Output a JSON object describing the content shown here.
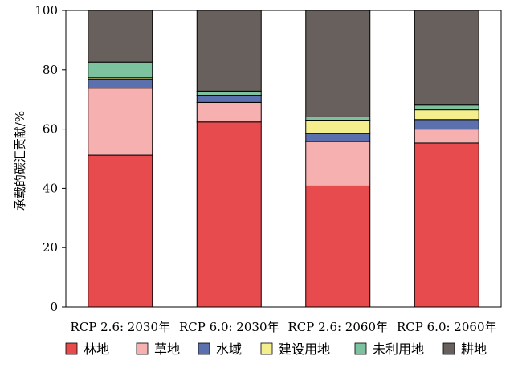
{
  "chart_data": {
    "type": "bar",
    "stacked": true,
    "categories": [
      "RCP 2.6: 2030年",
      "RCP 6.0: 2030年",
      "RCP 2.6: 2060年",
      "RCP 6.0: 2060年"
    ],
    "series": [
      {
        "name": "林地",
        "color": "#e84b4e",
        "values": [
          51.2,
          62.4,
          40.8,
          55.3
        ]
      },
      {
        "name": "草地",
        "color": "#f7b0b0",
        "values": [
          22.6,
          6.6,
          15.0,
          4.7
        ]
      },
      {
        "name": "水域",
        "color": "#5d70ae",
        "values": [
          3.0,
          2.2,
          2.7,
          3.2
        ]
      },
      {
        "name": "建设用地",
        "color": "#f4ef8c",
        "values": [
          0.5,
          0.2,
          4.5,
          3.3
        ]
      },
      {
        "name": "未利用地",
        "color": "#7dc29f",
        "values": [
          5.3,
          1.4,
          1.1,
          1.6
        ]
      },
      {
        "name": "耕地",
        "color": "#67605c",
        "values": [
          17.4,
          27.2,
          35.9,
          31.9
        ]
      }
    ],
    "ylabel": "承载的碳汇贡献/%",
    "xlabel": "",
    "ylim": [
      0,
      100
    ],
    "yticks": [
      0,
      20,
      40,
      60,
      80,
      100
    ],
    "grid": false,
    "legend_position": "bottom"
  }
}
